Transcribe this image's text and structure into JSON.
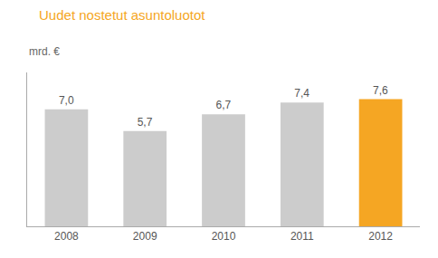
{
  "chart_data": {
    "type": "bar",
    "title": "Uudet nostetut asuntoluotot",
    "ylabel": "mrd. €",
    "categories": [
      "2008",
      "2009",
      "2010",
      "2011",
      "2012"
    ],
    "values": [
      7.0,
      5.7,
      6.7,
      7.4,
      7.6
    ],
    "value_labels": [
      "7,0",
      "5,7",
      "6,7",
      "7,4",
      "7,6"
    ],
    "colors": [
      "#cccccc",
      "#cccccc",
      "#cccccc",
      "#cccccc",
      "#f5a623"
    ],
    "title_color": "#f5a623",
    "ylim": [
      0,
      9.2
    ],
    "yticks": [],
    "grid": false,
    "tick_labels": "x",
    "data_labels": true
  }
}
